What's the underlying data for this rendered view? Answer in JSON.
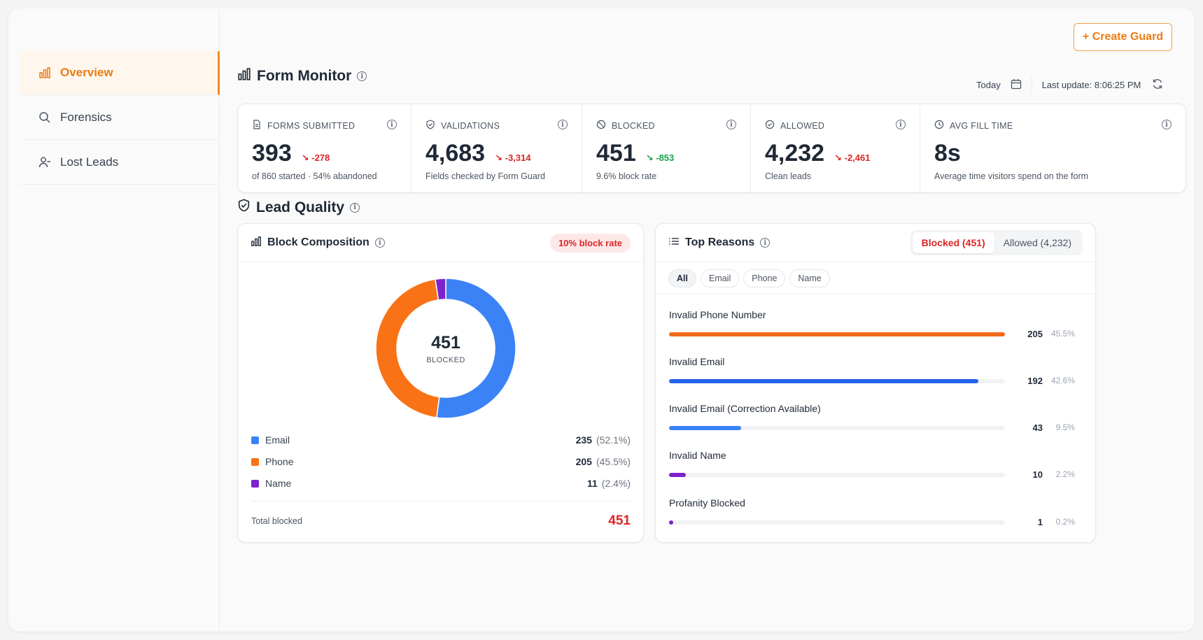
{
  "sidebar": {
    "items": [
      {
        "label": "Overview",
        "icon": "bar-chart-icon",
        "active": true
      },
      {
        "label": "Forensics",
        "icon": "search-icon",
        "active": false
      },
      {
        "label": "Lost Leads",
        "icon": "user-minus-icon",
        "active": false
      }
    ]
  },
  "header": {
    "create_button": "+ Create Guard",
    "title": "Form Monitor",
    "range_label": "Today",
    "last_update": "Last update: 8:06:25 PM"
  },
  "kpis": [
    {
      "label": "FORMS SUBMITTED",
      "icon": "document-icon",
      "value": "393",
      "delta": "-278",
      "delta_color": "#dc2626",
      "sub": "of 860 started · 54% abandoned"
    },
    {
      "label": "VALIDATIONS",
      "icon": "shield-check-icon",
      "value": "4,683",
      "delta": "-3,314",
      "delta_color": "#dc2626",
      "sub": "Fields checked by Form Guard"
    },
    {
      "label": "BLOCKED",
      "icon": "block-icon",
      "value": "451",
      "delta": "-853",
      "delta_color": "#16a34a",
      "sub": "9.6% block rate"
    },
    {
      "label": "ALLOWED",
      "icon": "check-circle-icon",
      "value": "4,232",
      "delta": "-2,461",
      "delta_color": "#dc2626",
      "sub": "Clean leads"
    },
    {
      "label": "AVG FILL TIME",
      "icon": "clock-icon",
      "value": "8s",
      "delta": "",
      "delta_color": "#dc2626",
      "sub": "Average time visitors spend on the form"
    }
  ],
  "lead_quality": {
    "title": "Lead Quality"
  },
  "block_composition": {
    "title": "Block Composition",
    "badge": "10% block rate",
    "center_value": "451",
    "center_label": "BLOCKED",
    "segments": [
      {
        "label": "Email",
        "value": "235",
        "pct": "(52.1%)",
        "fraction": 0.521,
        "color": "#3b82f6"
      },
      {
        "label": "Phone",
        "value": "205",
        "pct": "(45.5%)",
        "fraction": 0.455,
        "color": "#f97316"
      },
      {
        "label": "Name",
        "value": "11",
        "pct": "(2.4%)",
        "fraction": 0.024,
        "color": "#7e22ce"
      }
    ],
    "total_label": "Total blocked",
    "total_value": "451"
  },
  "top_reasons": {
    "title": "Top Reasons",
    "tabs": [
      {
        "label": "Blocked (451)",
        "active": true
      },
      {
        "label": "Allowed (4,232)",
        "active": false
      }
    ],
    "filters": [
      {
        "label": "All",
        "active": true
      },
      {
        "label": "Email",
        "active": false
      },
      {
        "label": "Phone",
        "active": false
      },
      {
        "label": "Name",
        "active": false
      }
    ],
    "rows": [
      {
        "label": "Invalid Phone Number",
        "value": "205",
        "pct": "45.5%",
        "fraction": 1.0,
        "color": "#f26b1d"
      },
      {
        "label": "Invalid Email",
        "value": "192",
        "pct": "42.6%",
        "fraction": 0.92,
        "color": "#2563eb"
      },
      {
        "label": "Invalid Email (Correction Available)",
        "value": "43",
        "pct": "9.5%",
        "fraction": 0.215,
        "color": "#3b82f6"
      },
      {
        "label": "Invalid Name",
        "value": "10",
        "pct": "2.2%",
        "fraction": 0.05,
        "color": "#7e22ce"
      },
      {
        "label": "Profanity Blocked",
        "value": "1",
        "pct": "0.2%",
        "fraction": 0.01,
        "color": "#7e22ce"
      }
    ]
  }
}
